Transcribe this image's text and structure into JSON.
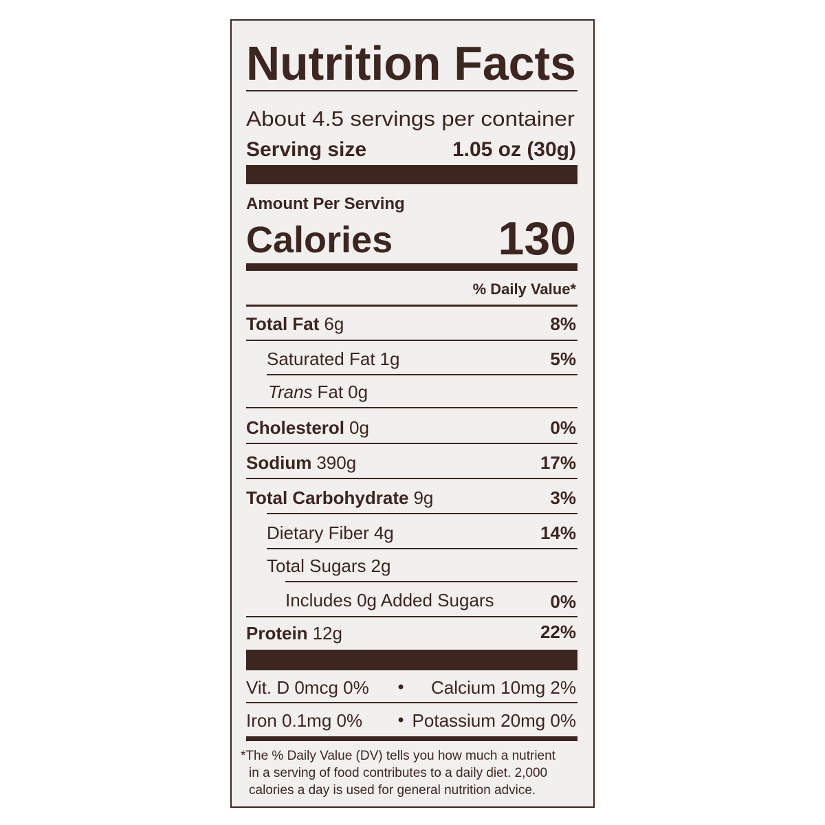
{
  "title": "Nutrition Facts",
  "servings": "About 4.5 servings per container",
  "serving_size": {
    "label": "Serving size",
    "value": "1.05 oz (30g)"
  },
  "amount_per_serving": "Amount Per Serving",
  "calories": {
    "label": "Calories",
    "value": 130
  },
  "daily_value_header": "% Daily Value*",
  "nutrients": [
    {
      "name": "Total Fat",
      "amount": "6g",
      "dv": "8%"
    },
    {
      "name": "Saturated Fat",
      "amount": "1g",
      "dv": "5%"
    },
    {
      "name_italic": "Trans",
      "name": "Fat",
      "amount": "0g"
    },
    {
      "name": "Cholesterol",
      "amount": "0g",
      "dv": "0%"
    },
    {
      "name": "Sodium",
      "amount": "390g",
      "dv": "17%"
    },
    {
      "name": "Total Carbohydrate",
      "amount": "9g",
      "dv": "3%"
    },
    {
      "name": "Dietary Fiber",
      "amount": "4g",
      "dv": "14%"
    },
    {
      "name": "Total Sugars",
      "amount": "2g"
    },
    {
      "name": "Includes 0g Added Sugars",
      "dv": "0%"
    },
    {
      "name": "Protein",
      "amount": "12g",
      "dv": "22%"
    }
  ],
  "vitamins": [
    "Vit. D 0mcg 0%",
    "Calcium 10mg 2%",
    "Iron 0.1mg 0%",
    "Potassium 20mg 0%"
  ],
  "footnote": [
    "*The % Daily Value (DV) tells you how much a nutrient",
    "in a serving of food contributes to a daily diet. 2,000",
    "calories a day is used for general nutrition advice."
  ]
}
